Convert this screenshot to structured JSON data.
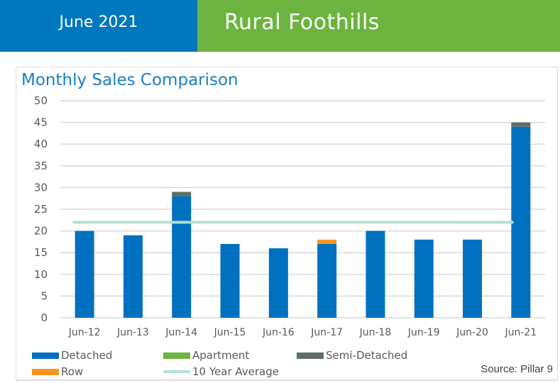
{
  "header": {
    "date_label": "June 2021",
    "region_title": "Rural Foothills",
    "colors": {
      "date_bg": "#0077bf",
      "title_bg": "#6db33f"
    }
  },
  "source_label": "Source: Pillar 9",
  "chart_data": {
    "type": "bar",
    "stacked": true,
    "title": "Monthly Sales Comparison",
    "xlabel": "",
    "ylabel": "",
    "ylim": [
      0,
      50
    ],
    "yticks": [
      0,
      5,
      10,
      15,
      20,
      25,
      30,
      35,
      40,
      45,
      50
    ],
    "grid": true,
    "legend_position": "bottom",
    "categories": [
      "Jun-12",
      "Jun-13",
      "Jun-14",
      "Jun-15",
      "Jun-16",
      "Jun-17",
      "Jun-18",
      "Jun-19",
      "Jun-20",
      "Jun-21"
    ],
    "series": [
      {
        "name": "Detached",
        "color": "#0070c0",
        "values": [
          20,
          19,
          28,
          17,
          16,
          17,
          20,
          18,
          18,
          44
        ]
      },
      {
        "name": "Apartment",
        "color": "#6db33f",
        "values": [
          0,
          0,
          0,
          0,
          0,
          0,
          0,
          0,
          0,
          0
        ]
      },
      {
        "name": "Semi-Detached",
        "color": "#5e6e66",
        "values": [
          0,
          0,
          1,
          0,
          0,
          0,
          0,
          0,
          0,
          1
        ]
      },
      {
        "name": "Row",
        "color": "#f7941d",
        "values": [
          0,
          0,
          0,
          0,
          0,
          1,
          0,
          0,
          0,
          0
        ]
      }
    ],
    "lines": [
      {
        "name": "10 Year Average",
        "color": "#b4ded4",
        "value": 22
      }
    ]
  }
}
